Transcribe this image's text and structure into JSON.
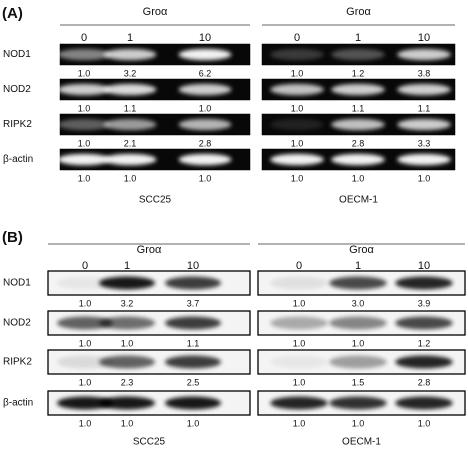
{
  "panels": [
    {
      "label": "(A)",
      "rows": [
        "NOD1",
        "NOD2",
        "RIPK2",
        "β-actin"
      ],
      "blots": [
        {
          "treatment": "Groα",
          "doses": [
            "0",
            "1",
            "10"
          ],
          "cell_line": "SCC25",
          "quant": [
            [
              "1.0",
              "3.2",
              "6.2"
            ],
            [
              "1.0",
              "1.1",
              "1.0"
            ],
            [
              "1.0",
              "2.1",
              "2.8"
            ],
            [
              "1.0",
              "1.0",
              "1.0"
            ]
          ]
        },
        {
          "treatment": "Groα",
          "doses": [
            "0",
            "1",
            "10"
          ],
          "cell_line": "OECM-1",
          "quant": [
            [
              "1.0",
              "1.2",
              "3.8"
            ],
            [
              "1.0",
              "1.1",
              "1.1"
            ],
            [
              "1.0",
              "2.8",
              "3.3"
            ],
            [
              "1.0",
              "1.0",
              "1.0"
            ]
          ]
        }
      ]
    },
    {
      "label": "(B)",
      "rows": [
        "NOD1",
        "NOD2",
        "RIPK2",
        "β-actin"
      ],
      "blots": [
        {
          "treatment": "Groα",
          "doses": [
            "0",
            "1",
            "10"
          ],
          "cell_line": "SCC25",
          "quant": [
            [
              "1.0",
              "3.2",
              "3.7"
            ],
            [
              "1.0",
              "1.0",
              "1.1"
            ],
            [
              "1.0",
              "2.3",
              "2.5"
            ],
            [
              "1.0",
              "1.0",
              "1.0"
            ]
          ]
        },
        {
          "treatment": "Groα",
          "doses": [
            "0",
            "1",
            "10"
          ],
          "cell_line": "OECM-1",
          "quant": [
            [
              "1.0",
              "3.0",
              "3.9"
            ],
            [
              "1.0",
              "1.0",
              "1.2"
            ],
            [
              "1.0",
              "1.5",
              "2.8"
            ],
            [
              "1.0",
              "1.0",
              "1.0"
            ]
          ]
        }
      ]
    }
  ]
}
